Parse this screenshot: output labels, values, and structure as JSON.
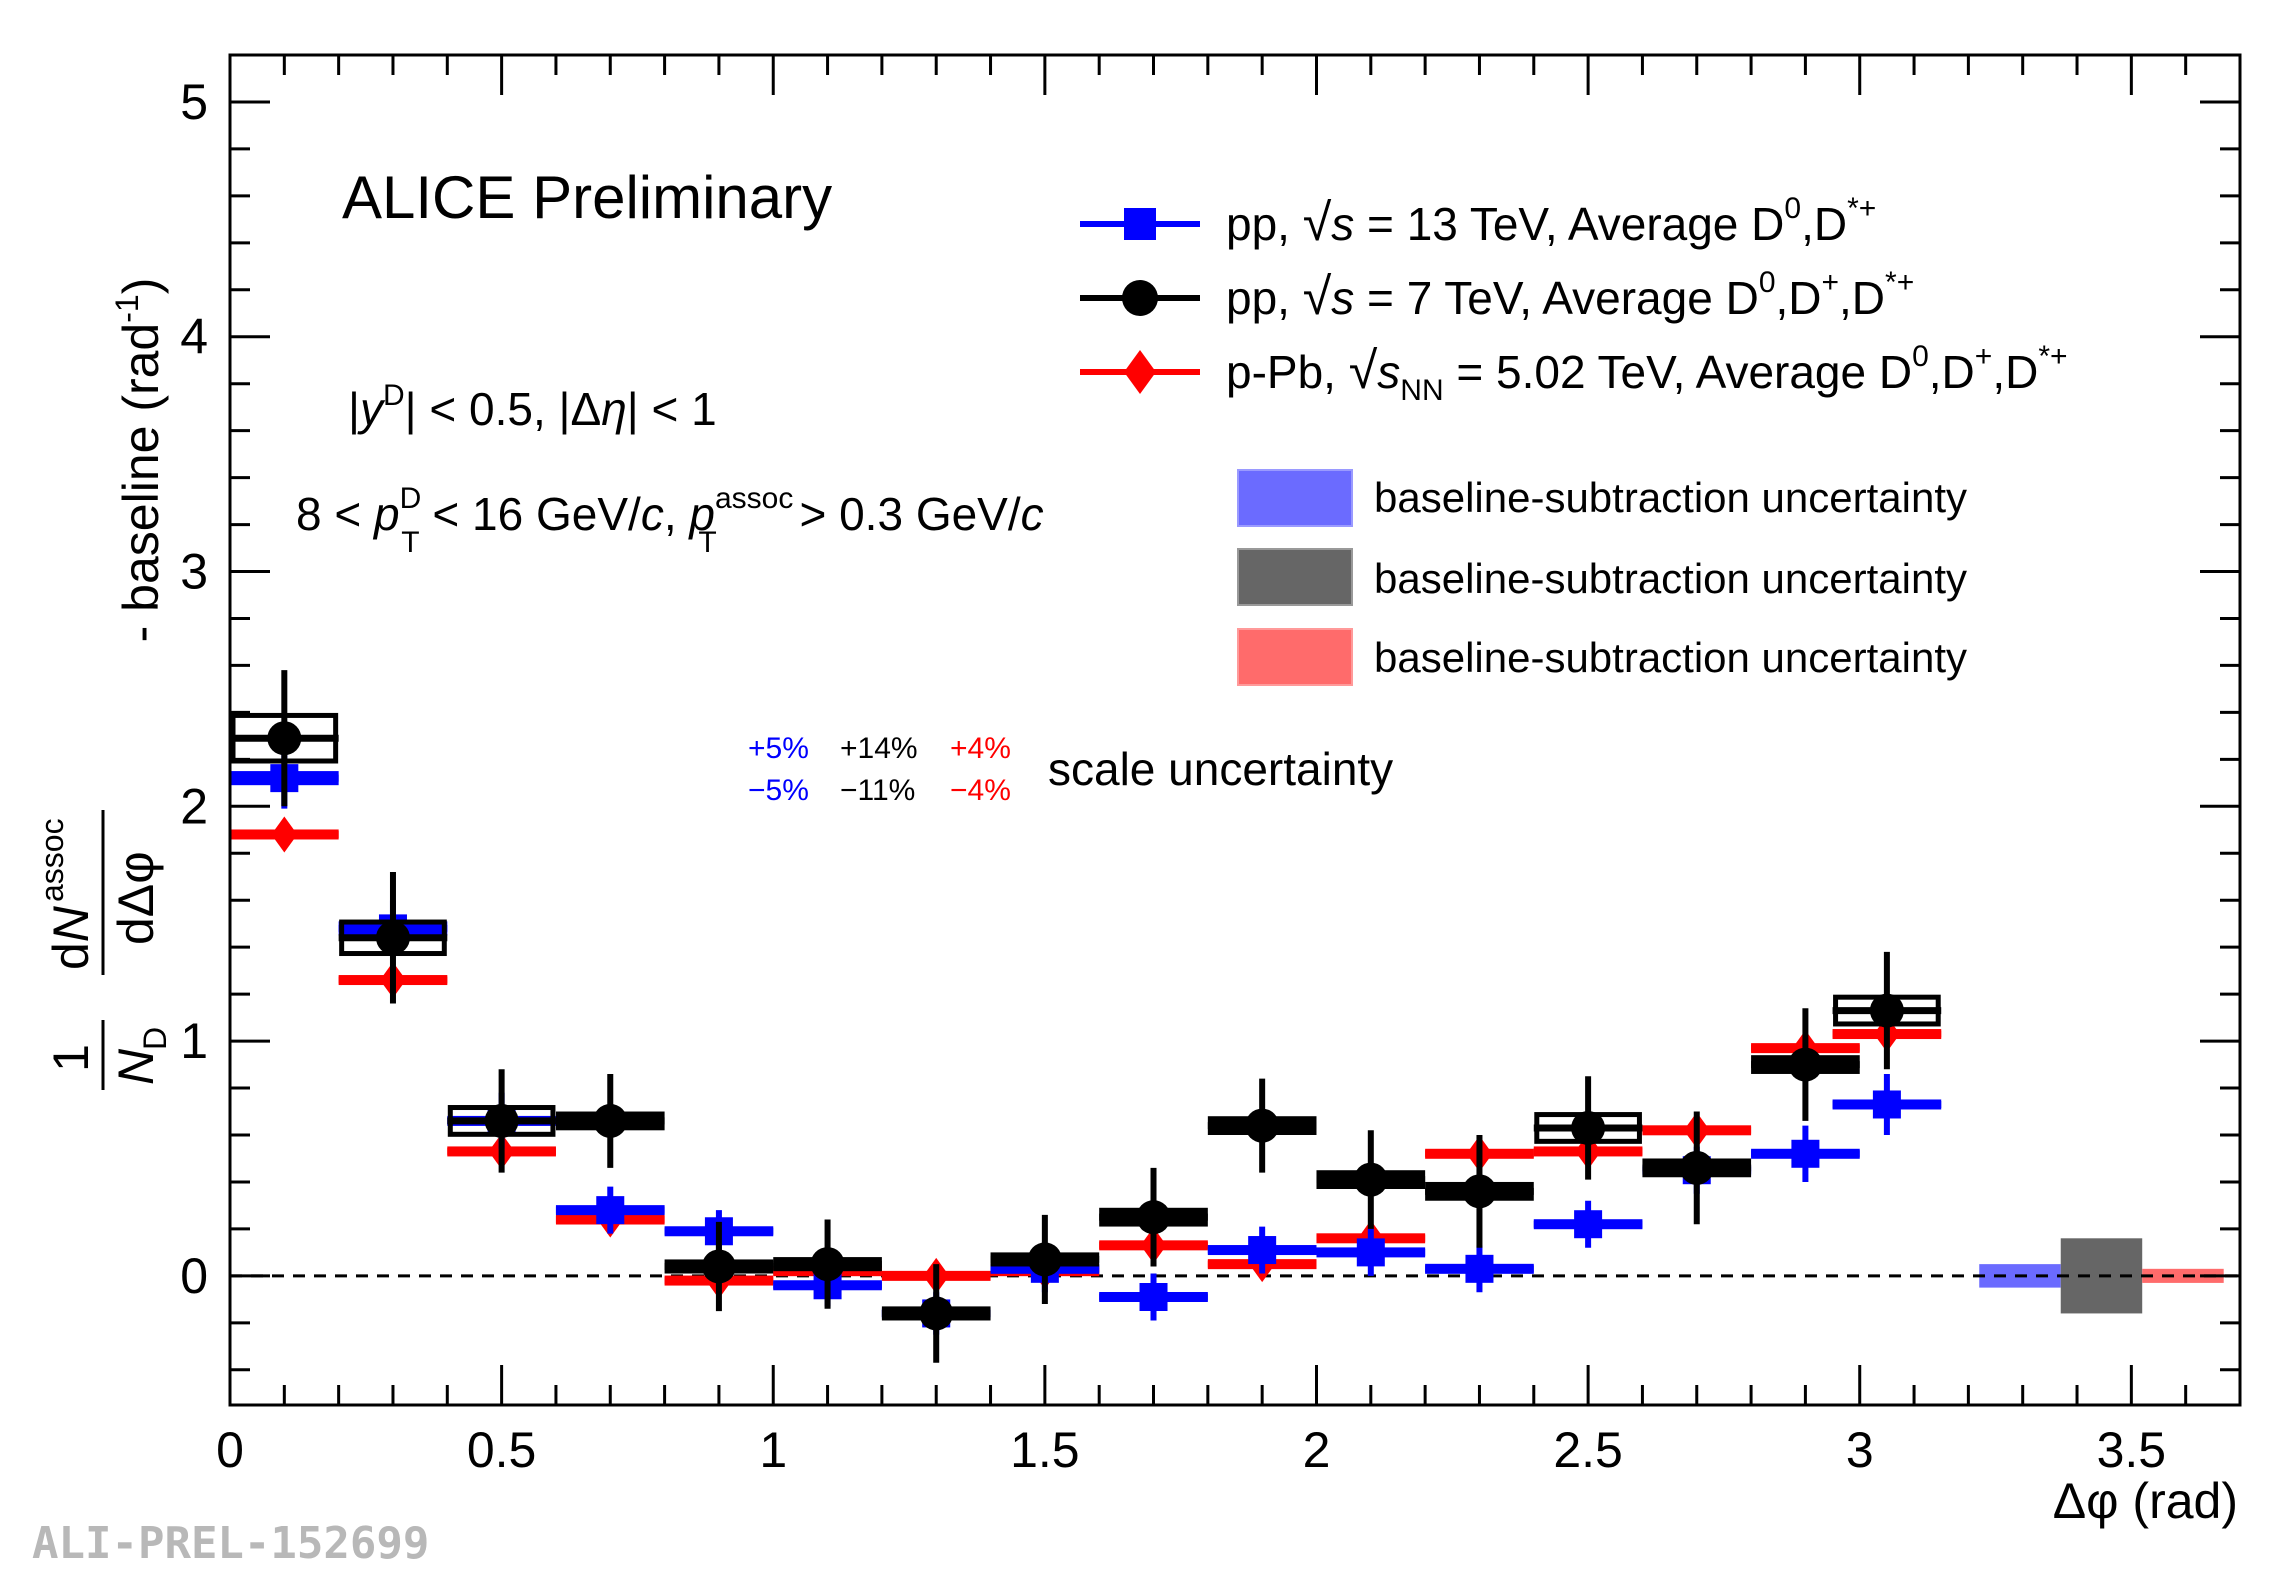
{
  "chart_data": {
    "type": "scatter",
    "title": "ALICE Preliminary",
    "xlabel": "Δφ (rad)",
    "ylabel": "1/N_D dN^assoc/dΔφ - baseline (rad^-1)",
    "ylabel_parts": {
      "one": "1",
      "N": "N",
      "D": "D",
      "dN": "dN",
      "assoc": "assoc",
      "dphi": "dΔφ",
      "rest": "- baseline (rad",
      "exp": "-1",
      "close": ")"
    },
    "xlim": [
      0,
      3.7
    ],
    "ylim": [
      -0.55,
      5.2
    ],
    "x_ticks": [
      0,
      0.5,
      1,
      1.5,
      2,
      2.5,
      3,
      3.5
    ],
    "x_tick_labels": [
      "0",
      "0.5",
      "1",
      "1.5",
      "2",
      "2.5",
      "3",
      "3.5"
    ],
    "y_ticks": [
      0,
      1,
      2,
      3,
      4,
      5
    ],
    "y_tick_labels": [
      "0",
      "1",
      "2",
      "3",
      "4",
      "5"
    ],
    "bin_half_width": 0.1,
    "series": [
      {
        "name": "pp, √s = 13 TeV, Average D0,D*+",
        "color": "#0000ff",
        "marker": "square",
        "x": [
          0.1,
          0.3,
          0.5,
          0.7,
          0.9,
          1.1,
          1.3,
          1.5,
          1.7,
          1.9,
          2.1,
          2.3,
          2.5,
          2.7,
          2.9,
          3.05
        ],
        "y": [
          2.12,
          1.48,
          0.66,
          0.28,
          0.19,
          -0.04,
          -0.16,
          0.03,
          -0.09,
          0.11,
          0.1,
          0.03,
          0.22,
          0.45,
          0.52,
          0.73
        ],
        "err": [
          0.13,
          0.12,
          0.12,
          0.1,
          0.09,
          0.09,
          0.09,
          0.1,
          0.1,
          0.1,
          0.1,
          0.1,
          0.1,
          0.1,
          0.12,
          0.13
        ],
        "syst": [
          0.03,
          0.03,
          0.02,
          0.02,
          0.02,
          0.02,
          0.02,
          0.02,
          0.02,
          0.02,
          0.02,
          0.02,
          0.02,
          0.02,
          0.02,
          0.02
        ]
      },
      {
        "name": "pp, √s = 7 TeV, Average D0,D+,D*+",
        "color": "#000000",
        "marker": "circle",
        "x": [
          0.1,
          0.3,
          0.5,
          0.7,
          0.9,
          1.1,
          1.3,
          1.5,
          1.7,
          1.9,
          2.1,
          2.3,
          2.5,
          2.7,
          2.9,
          3.05
        ],
        "y": [
          2.29,
          1.44,
          0.66,
          0.66,
          0.04,
          0.05,
          -0.16,
          0.07,
          0.25,
          0.64,
          0.41,
          0.36,
          0.63,
          0.46,
          0.9,
          1.13
        ],
        "err": [
          0.29,
          0.28,
          0.22,
          0.2,
          0.19,
          0.19,
          0.21,
          0.19,
          0.21,
          0.2,
          0.21,
          0.24,
          0.22,
          0.24,
          0.24,
          0.25
        ],
        "syst": [
          0.08,
          0.05,
          0.04,
          0.04,
          0.03,
          0.03,
          0.03,
          0.03,
          0.04,
          0.04,
          0.04,
          0.04,
          0.04,
          0.04,
          0.04,
          0.04
        ],
        "open_box": [
          true,
          true,
          true,
          false,
          false,
          false,
          false,
          false,
          false,
          false,
          false,
          false,
          true,
          false,
          false,
          true
        ]
      },
      {
        "name": "p-Pb, √sNN = 5.02 TeV, Average D0,D+,D*+",
        "color": "#ff0000",
        "marker": "diamond",
        "x": [
          0.1,
          0.3,
          0.5,
          0.7,
          0.9,
          1.1,
          1.3,
          1.5,
          1.7,
          1.9,
          2.1,
          2.3,
          2.5,
          2.7,
          2.9,
          3.05
        ],
        "y": [
          1.88,
          1.26,
          0.53,
          0.24,
          -0.02,
          0.02,
          0.0,
          0.02,
          0.13,
          0.05,
          0.16,
          0.52,
          0.53,
          0.62,
          0.97,
          1.03
        ],
        "err": [
          0.04,
          0.04,
          0.04,
          0.04,
          0.04,
          0.04,
          0.04,
          0.04,
          0.04,
          0.04,
          0.04,
          0.04,
          0.04,
          0.04,
          0.04,
          0.04
        ],
        "syst": [
          0.02,
          0.02,
          0.02,
          0.02,
          0.02,
          0.02,
          0.02,
          0.02,
          0.02,
          0.02,
          0.02,
          0.02,
          0.02,
          0.02,
          0.02,
          0.02
        ]
      }
    ],
    "baseline_uncertainty_boxes": [
      {
        "color": "#6b6bff",
        "x": [
          3.22,
          3.37
        ],
        "y": [
          -0.05,
          0.05
        ]
      },
      {
        "color": "#666666",
        "x": [
          3.37,
          3.52
        ],
        "y": [
          -0.16,
          0.16
        ]
      },
      {
        "color": "#ff6b6b",
        "x": [
          3.52,
          3.67
        ],
        "y": [
          -0.03,
          0.03
        ]
      }
    ],
    "zero_line": true
  },
  "annotations": {
    "title": "ALICE Preliminary",
    "rapidity_cut": "|yD| < 0.5, |Δη| < 1",
    "pt_cut": "8 < pTD < 16 GeV/c, pTassoc > 0.3 GeV/c",
    "rap": {
      "open": "|",
      "y": "y",
      "D": "D",
      "mid": "| < 0.5, |Δ",
      "eta": "η",
      "end": "| < 1"
    },
    "pt": {
      "a": "8 < ",
      "p1": "p",
      "T1": "T",
      "D1": "D",
      "b": " < 16 GeV/",
      "c1": "c",
      "comma": ", ",
      "p2": "p",
      "T2": "T",
      "assoc2": "assoc",
      "d": " > 0.3 GeV/",
      "c2": "c"
    }
  },
  "legend": {
    "entries": [
      {
        "label": "pp, √s = 13 TeV, Average D0,D*+",
        "color": "#0000ff",
        "marker": "square",
        "a": "pp, ",
        "sqrt": "√",
        "s": "s",
        "b": " = 13 TeV, Average D",
        "sup1": "0",
        "c": ",D",
        "sup2": "*+"
      },
      {
        "label": "pp, √s = 7 TeV, Average D0,D+,D*+",
        "color": "#000000",
        "marker": "circle",
        "a": "pp, ",
        "sqrt": "√",
        "s": "s",
        "b": " = 7 TeV, Average D",
        "sup1": "0",
        "c": ",D",
        "sup2": "+",
        "d": ",D",
        "sup3": "*+"
      },
      {
        "label": "p-Pb, √sNN = 5.02 TeV, Average D0,D+,D*+",
        "color": "#ff0000",
        "marker": "diamond",
        "a": "p-Pb, ",
        "sqrt": "√",
        "s": "s",
        "sub": "NN",
        "b": " = 5.02 TeV, Average D",
        "sup1": "0",
        "c": ",D",
        "sup2": "+",
        "d": ",D",
        "sup3": "*+"
      }
    ],
    "uncertainty_boxes": [
      {
        "label": "baseline-subtraction uncertainty",
        "color": "#6b6bff"
      },
      {
        "label": "baseline-subtraction uncertainty",
        "color": "#666666"
      },
      {
        "label": "baseline-subtraction uncertainty",
        "color": "#ff6b6b"
      }
    ]
  },
  "scale_uncertainty": {
    "label": "scale uncertainty",
    "values": [
      {
        "plus": "+5%",
        "minus": "−5%",
        "color": "#0000ff"
      },
      {
        "plus": "+14%",
        "minus": "−11%",
        "color": "#000000"
      },
      {
        "plus": "+4%",
        "minus": "−4%",
        "color": "#ff0000"
      }
    ]
  },
  "watermark": "ALI-PREL-152699"
}
